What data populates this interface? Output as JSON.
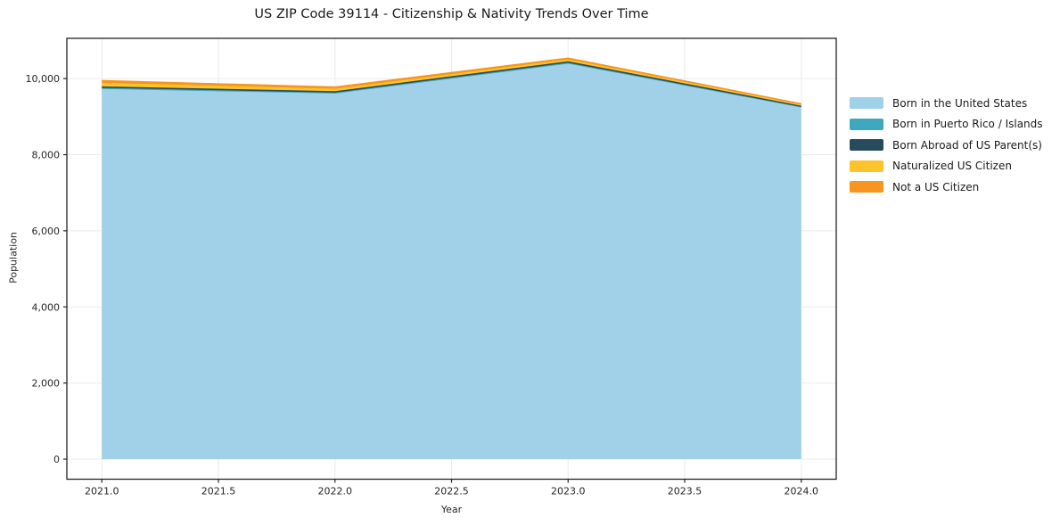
{
  "figure": {
    "kind": "stacked-area-chart"
  },
  "chart_data": {
    "type": "area",
    "stacked": true,
    "title": "US ZIP Code 39114 - Citizenship & Nativity Trends Over Time",
    "xlabel": "Year",
    "ylabel": "Population",
    "x": [
      2021,
      2022,
      2023,
      2024
    ],
    "series": [
      {
        "name": "Born in the United States",
        "color": "#a0d1e8",
        "values": [
          9735,
          9620,
          10400,
          9255
        ]
      },
      {
        "name": "Born in Puerto Rico / Islands",
        "color": "#3fa8c0",
        "values": [
          10,
          5,
          10,
          5
        ]
      },
      {
        "name": "Born Abroad of US Parent(s)",
        "color": "#284b5c",
        "values": [
          30,
          25,
          25,
          15
        ]
      },
      {
        "name": "Naturalized US Citizen",
        "color": "#fdc32b",
        "values": [
          95,
          65,
          50,
          30
        ]
      },
      {
        "name": "Not a US Citizen",
        "color": "#f89420",
        "values": [
          75,
          60,
          50,
          30
        ]
      }
    ],
    "totals": [
      9945,
      9775,
      10535,
      9335
    ],
    "x_ticks": [
      "2021.0",
      "2021.5",
      "2022.0",
      "2022.5",
      "2023.0",
      "2023.5",
      "2024.0"
    ],
    "x_tick_values": [
      2021,
      2021.5,
      2022,
      2022.5,
      2023,
      2023.5,
      2024
    ],
    "y_ticks": [
      "0",
      "2,000",
      "4,000",
      "6,000",
      "8,000",
      "10,000"
    ],
    "y_tick_values": [
      0,
      2000,
      4000,
      6000,
      8000,
      10000
    ],
    "xlim": [
      2020.85,
      2024.15
    ],
    "ylim": [
      -527,
      11057
    ],
    "grid": true,
    "grid_color": "#ebebeb",
    "frame_color": "#222222",
    "tick_label_color": "#262626",
    "legend_position": "right"
  }
}
